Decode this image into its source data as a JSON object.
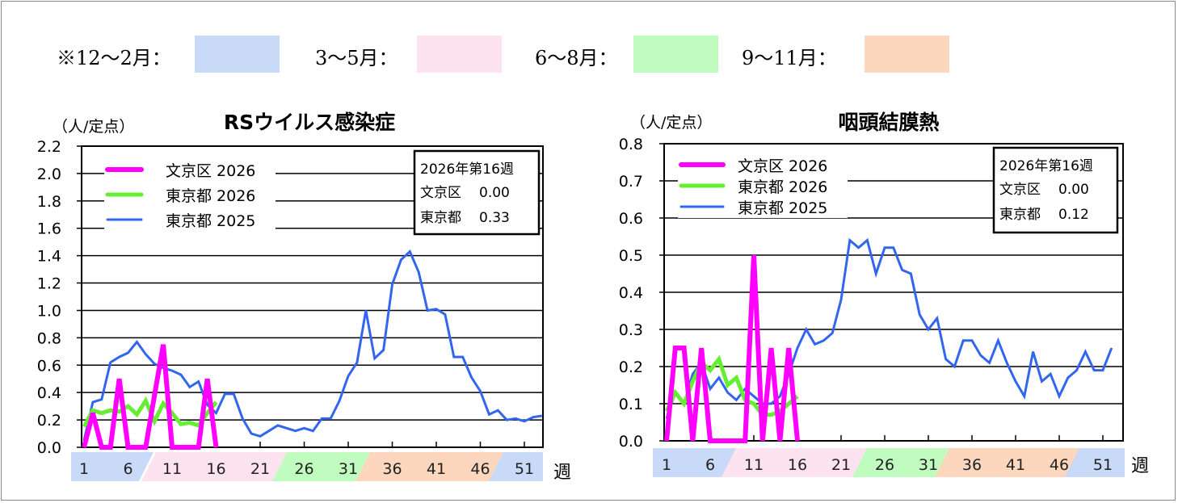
{
  "season_legend": [
    {
      "label": "※12～2月：",
      "color": "#c9d9f8"
    },
    {
      "label": "3～5月：",
      "color": "#fde3ef"
    },
    {
      "label": "6～8月：",
      "color": "#c0fcc0"
    },
    {
      "label": "9～11月：",
      "color": "#fcd6bd"
    }
  ],
  "chart_data": [
    {
      "type": "line",
      "title": "RSウイルス感染症",
      "ylabel": "（人/定点）",
      "xlabel": "週",
      "ylim": [
        0,
        2.2
      ],
      "ystep": 0.2,
      "yticks": [
        "0.0",
        "0.2",
        "0.4",
        "0.6",
        "0.8",
        "1.0",
        "1.2",
        "1.4",
        "1.6",
        "1.8",
        "2.0",
        "2.2"
      ],
      "xticks": [
        "1",
        "6",
        "11",
        "16",
        "21",
        "26",
        "31",
        "36",
        "41",
        "46",
        "51"
      ],
      "grid": true,
      "legend_position": "top-left",
      "series": [
        {
          "name": "文京区 2026",
          "color": "#ff00ff",
          "values": [
            0,
            0.25,
            0,
            0,
            0.5,
            0,
            0,
            0,
            0.38,
            0.75,
            0,
            0,
            0,
            0,
            0.5,
            0
          ]
        },
        {
          "name": "東京都 2026",
          "color": "#66ee33",
          "values": [
            0.15,
            0.27,
            0.25,
            0.27,
            0.26,
            0.3,
            0.24,
            0.34,
            0.19,
            0.32,
            0.25,
            0.17,
            0.18,
            0.16,
            0.25,
            0.33
          ]
        },
        {
          "name": "東京都 2025",
          "color": "#3366ee",
          "values": [
            0.05,
            0.33,
            0.35,
            0.62,
            0.66,
            0.69,
            0.77,
            0.68,
            0.61,
            0.58,
            0.56,
            0.53,
            0.44,
            0.48,
            0.31,
            0.25,
            0.39,
            0.39,
            0.21,
            0.1,
            0.08,
            0.12,
            0.16,
            0.14,
            0.12,
            0.14,
            0.12,
            0.21,
            0.21,
            0.34,
            0.52,
            0.62,
            1.0,
            0.65,
            0.71,
            1.19,
            1.37,
            1.43,
            1.28,
            1.0,
            1.01,
            0.97,
            0.66,
            0.66,
            0.51,
            0.41,
            0.24,
            0.27,
            0.2,
            0.21,
            0.19,
            0.22,
            0.23
          ]
        }
      ],
      "stat_box": {
        "title": "2026年第16週",
        "rows": [
          {
            "label": "文京区",
            "value": "0.00"
          },
          {
            "label": "東京都",
            "value": "0.33"
          }
        ]
      }
    },
    {
      "type": "line",
      "title": "咽頭結膜熱",
      "ylabel": "（人/定点）",
      "xlabel": "週",
      "ylim": [
        0,
        0.8
      ],
      "ystep": 0.1,
      "yticks": [
        "0.0",
        "0.1",
        "0.2",
        "0.3",
        "0.4",
        "0.5",
        "0.6",
        "0.7",
        "0.8"
      ],
      "xticks": [
        "1",
        "6",
        "11",
        "16",
        "21",
        "26",
        "31",
        "36",
        "41",
        "46",
        "51"
      ],
      "grid": true,
      "legend_position": "top-left",
      "series": [
        {
          "name": "文京区 2026",
          "color": "#ff00ff",
          "values": [
            0,
            0.25,
            0.25,
            0,
            0.25,
            0,
            0,
            0,
            0,
            0,
            0.5,
            0,
            0.25,
            0,
            0.25,
            0
          ]
        },
        {
          "name": "東京都 2026",
          "color": "#66ee33",
          "values": [
            0.08,
            0.13,
            0.1,
            0.16,
            0.21,
            0.19,
            0.22,
            0.15,
            0.17,
            0.11,
            0.1,
            0.07,
            0.07,
            0.08,
            0.1,
            0.12
          ]
        },
        {
          "name": "東京都 2025",
          "color": "#3366ee",
          "values": [
            0.06,
            0.13,
            0.1,
            0.18,
            0.21,
            0.14,
            0.17,
            0.13,
            0.11,
            0.14,
            0.12,
            0.1,
            0.1,
            0.12,
            0.18,
            0.25,
            0.3,
            0.26,
            0.27,
            0.29,
            0.38,
            0.54,
            0.52,
            0.54,
            0.45,
            0.52,
            0.52,
            0.46,
            0.45,
            0.34,
            0.3,
            0.33,
            0.22,
            0.2,
            0.27,
            0.27,
            0.23,
            0.21,
            0.27,
            0.21,
            0.16,
            0.12,
            0.24,
            0.16,
            0.18,
            0.12,
            0.17,
            0.19,
            0.24,
            0.19,
            0.19,
            0.25
          ]
        }
      ],
      "stat_box": {
        "title": "2026年第16週",
        "rows": [
          {
            "label": "文京区",
            "value": "0.00"
          },
          {
            "label": "東京都",
            "value": "0.12"
          }
        ]
      }
    }
  ]
}
